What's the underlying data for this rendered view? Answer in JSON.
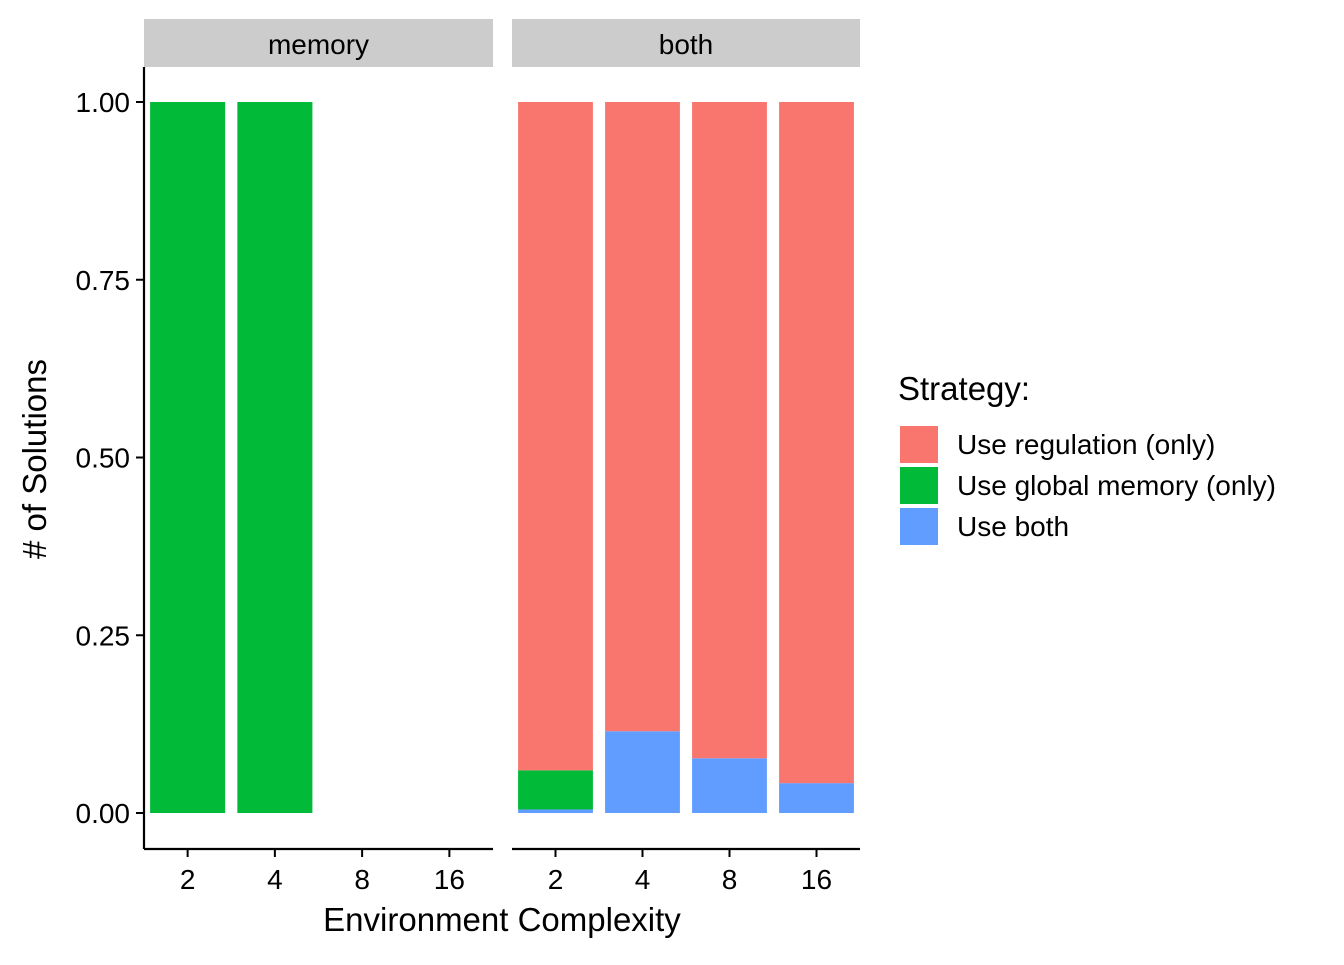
{
  "chart_data": {
    "type": "bar",
    "stacked": true,
    "ylabel": "# of Solutions",
    "xlabel": "Environment Complexity",
    "ylim": [
      0,
      1
    ],
    "yticks": [
      "0.00",
      "0.25",
      "0.50",
      "0.75",
      "1.00"
    ],
    "categories": [
      "2",
      "4",
      "8",
      "16"
    ],
    "legend": {
      "title": "Strategy:",
      "placement": "right",
      "entries": [
        {
          "key": "regulation",
          "label": "Use regulation (only)",
          "color": "#F8766D"
        },
        {
          "key": "global",
          "label": "Use global memory (only)",
          "color": "#00BA38"
        },
        {
          "key": "both",
          "label": "Use both",
          "color": "#619CFF"
        }
      ]
    },
    "facets": [
      {
        "label": "memory",
        "series": [
          {
            "key": "both",
            "values": [
              0,
              0,
              0,
              0
            ]
          },
          {
            "key": "global",
            "values": [
              1.0,
              1.0,
              0,
              0
            ]
          },
          {
            "key": "regulation",
            "values": [
              0,
              0,
              0,
              0
            ]
          }
        ]
      },
      {
        "label": "both",
        "series": [
          {
            "key": "both",
            "values": [
              0.005,
              0.115,
              0.077,
              0.042
            ]
          },
          {
            "key": "global",
            "values": [
              0.055,
              0,
              0,
              0
            ]
          },
          {
            "key": "regulation",
            "values": [
              0.94,
              0.885,
              0.923,
              0.958
            ]
          }
        ]
      }
    ]
  }
}
